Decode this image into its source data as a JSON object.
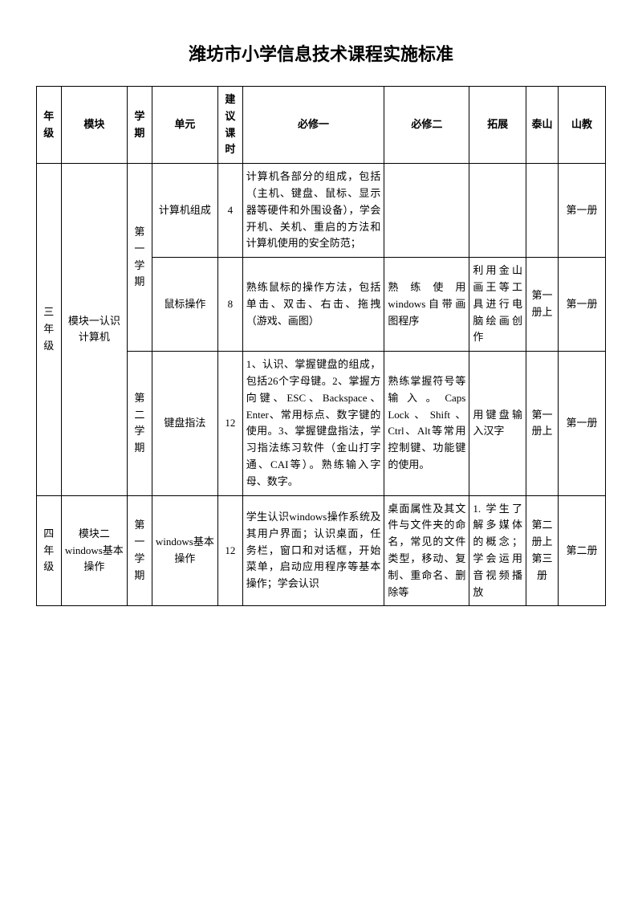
{
  "title": "潍坊市小学信息技术课程实施标准",
  "headers": {
    "grade": "年级",
    "module": "模块",
    "semester": "学期",
    "unit": "单元",
    "hours": "建议课时",
    "required1": "必修一",
    "required2": "必修二",
    "extension": "拓展",
    "taishan": "泰山",
    "shanjiao": "山教"
  },
  "rows": [
    {
      "grade": "三年级",
      "module": "模块一认识计算机",
      "semester1": "第一学期",
      "unit1": "计算机组成",
      "hours1": "4",
      "req1_1": "计算机各部分的组成，包括（主机、键盘、鼠标、显示器等硬件和外围设备），学会开机、关机、重启的方法和计算机使用的安全防范；",
      "req2_1": "",
      "ext1": "",
      "taishan1": "",
      "shanjiao1": "第一册",
      "unit2": "鼠标操作",
      "hours2": "8",
      "req1_2": "熟练鼠标的操作方法，包括单击、双击、右击、拖拽（游戏、画图）",
      "req2_2": "熟练使用windows自带画图程序",
      "ext2": "利用金山画王等工具进行电脑绘画创作",
      "taishan2": "第一册上",
      "shanjiao2": "第一册",
      "semester2": "第二学期",
      "unit3": "键盘指法",
      "hours3": "12",
      "req1_3": "1、认识、掌握键盘的组成，包括26个字母键。2、掌握方向键、ESC、Backspace、Enter、常用标点、数字键的使用。3、掌握键盘指法，学习指法练习软件（金山打字通、CAI等）。熟练输入字母、数字。",
      "req2_3": "熟练掌握符号等输入。Caps Lock、Shift、Ctrl、Alt等常用控制键、功能键的使用。",
      "ext3": "用键盘输入汉字",
      "taishan3": "第一册上",
      "shanjiao3": "第一册"
    },
    {
      "grade": "四年级",
      "module": "模块二windows基本操作",
      "semester": "第一学期",
      "unit": "windows基本操作",
      "hours": "12",
      "req1": "学生认识windows操作系统及其用户界面；认识桌面，任务栏，窗口和对话框，开始菜单，启动应用程序等基本操作；学会认识",
      "req2": "桌面属性及其文件与文件夹的命名，常见的文件类型，移动、复制、重命名、删除等",
      "ext": "1. 学生了解多媒体的概念；学会运用音视频播放",
      "taishan": "第二册上第三册",
      "shanjiao": "第二册"
    }
  ]
}
